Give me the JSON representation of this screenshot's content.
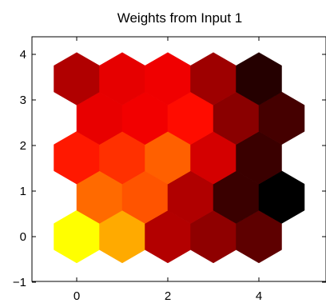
{
  "chart_data": {
    "type": "heatmap",
    "title": "Weights from Input 1",
    "xlabel": "",
    "ylabel": "",
    "xlim": [
      -1,
      5
    ],
    "ylim": [
      -1,
      4.33
    ],
    "x_ticks": [
      0,
      2,
      4
    ],
    "y_ticks": [
      -1,
      0,
      1,
      2,
      3,
      4
    ],
    "grid": false,
    "colormap": "hot",
    "cells": [
      {
        "x": 0,
        "y": 0,
        "color": "#ffff00"
      },
      {
        "x": 1,
        "y": 0,
        "color": "#ffaa00"
      },
      {
        "x": 2,
        "y": 0,
        "color": "#b30000"
      },
      {
        "x": 3,
        "y": 0,
        "color": "#8f0000"
      },
      {
        "x": 4,
        "y": 0,
        "color": "#5e0000"
      },
      {
        "x": 0.5,
        "y": 0.866,
        "color": "#ff6a00"
      },
      {
        "x": 1.5,
        "y": 0.866,
        "color": "#ff5400"
      },
      {
        "x": 2.5,
        "y": 0.866,
        "color": "#b00000"
      },
      {
        "x": 3.5,
        "y": 0.866,
        "color": "#3a0000"
      },
      {
        "x": 4.5,
        "y": 0.866,
        "color": "#000000"
      },
      {
        "x": 0,
        "y": 1.732,
        "color": "#ff1800"
      },
      {
        "x": 1,
        "y": 1.732,
        "color": "#ff3000"
      },
      {
        "x": 2,
        "y": 1.732,
        "color": "#ff6000"
      },
      {
        "x": 3,
        "y": 1.732,
        "color": "#d40000"
      },
      {
        "x": 4,
        "y": 1.732,
        "color": "#3a0000"
      },
      {
        "x": 0.5,
        "y": 2.598,
        "color": "#e80000"
      },
      {
        "x": 1.5,
        "y": 2.598,
        "color": "#f20000"
      },
      {
        "x": 2.5,
        "y": 2.598,
        "color": "#ff0c00"
      },
      {
        "x": 3.5,
        "y": 2.598,
        "color": "#8a0000"
      },
      {
        "x": 4.5,
        "y": 2.598,
        "color": "#450000"
      },
      {
        "x": 0,
        "y": 3.464,
        "color": "#b00000"
      },
      {
        "x": 1,
        "y": 3.464,
        "color": "#e60000"
      },
      {
        "x": 2,
        "y": 3.464,
        "color": "#f00000"
      },
      {
        "x": 3,
        "y": 3.464,
        "color": "#9e0000"
      },
      {
        "x": 4,
        "y": 3.464,
        "color": "#250000"
      }
    ]
  }
}
